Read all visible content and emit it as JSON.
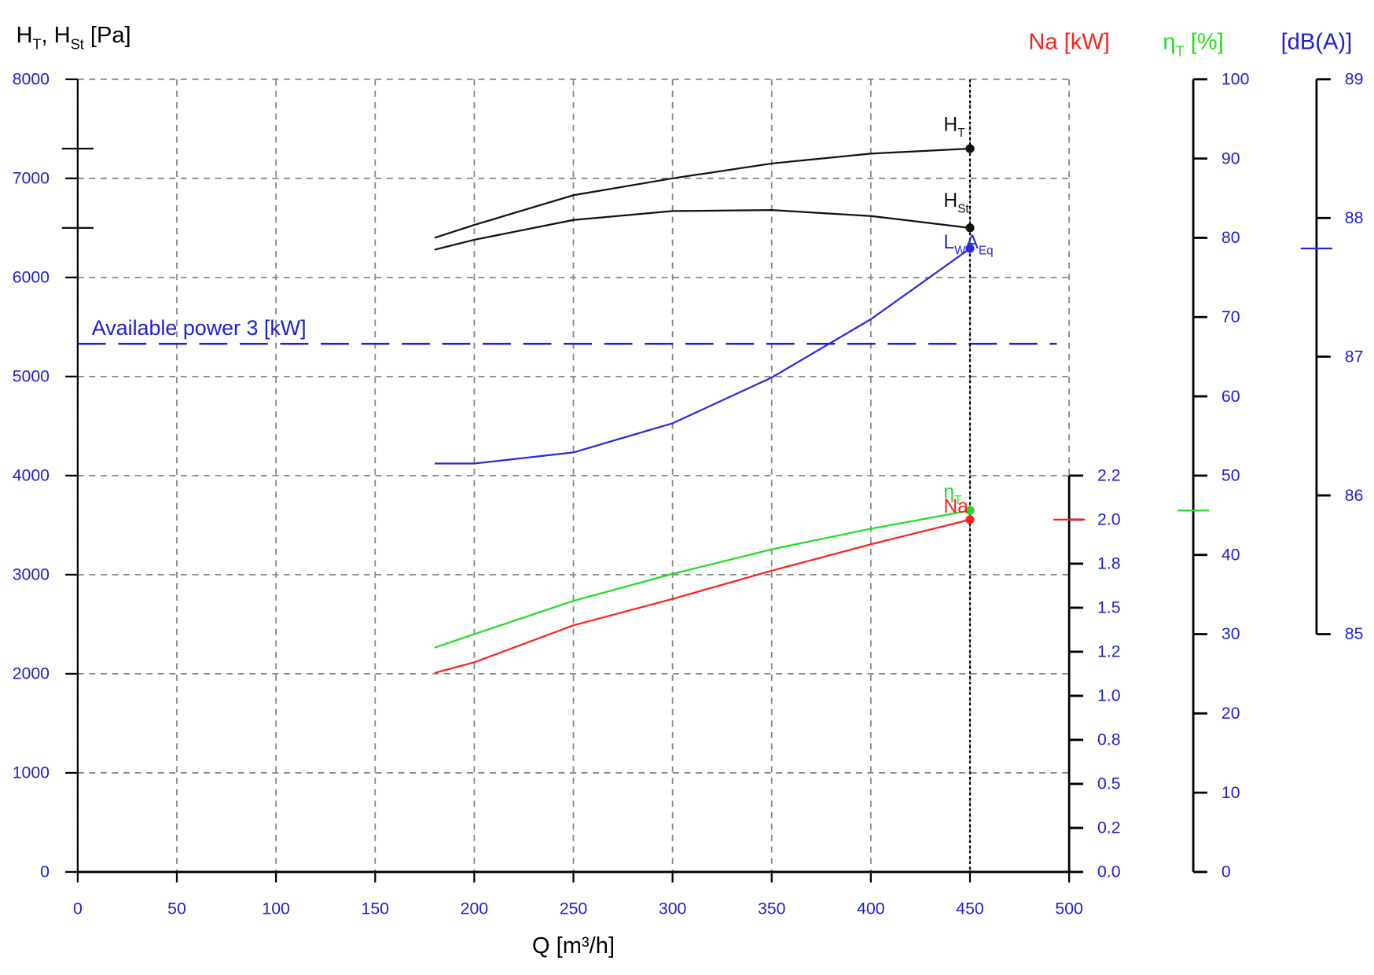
{
  "chart_data": {
    "type": "line",
    "x_label": "Q [m³/h]",
    "y_label": [
      "H",
      "T",
      ", H",
      "St",
      " [Pa]"
    ],
    "xlim": [
      0,
      500
    ],
    "xticks": [
      0,
      50,
      100,
      150,
      200,
      250,
      300,
      350,
      400,
      450,
      500
    ],
    "ylim": [
      0,
      8000
    ],
    "yticks": [
      0,
      1000,
      2000,
      3000,
      4000,
      5000,
      6000,
      7000,
      8000
    ],
    "grid": true,
    "operating_q": 450,
    "annotation": {
      "text": "Available power 3 [kW]",
      "y": 5330,
      "color": "#1f1fd0"
    },
    "axes": {
      "na": {
        "label": [
          "Na [kW]"
        ],
        "color": "#ff2020",
        "lim": [
          0,
          2.25
        ],
        "ticks": [
          {
            "value": 0,
            "label": "0.0"
          },
          {
            "value": 0.25,
            "label": "0.2"
          },
          {
            "value": 0.5,
            "label": "0.5"
          },
          {
            "value": 0.75,
            "label": "0.8"
          },
          {
            "value": 1,
            "label": "1.0"
          },
          {
            "value": 1.25,
            "label": "1.2"
          },
          {
            "value": 1.5,
            "label": "1.5"
          },
          {
            "value": 1.75,
            "label": "1.8"
          },
          {
            "value": 2,
            "label": "2.0"
          },
          {
            "value": 2.25,
            "label": "2.2"
          }
        ]
      },
      "eta": {
        "label": [
          "η",
          "T",
          " [%]"
        ],
        "color": "#22dd22",
        "lim": [
          0,
          100
        ],
        "ticks": [
          0,
          10,
          20,
          30,
          40,
          50,
          60,
          70,
          80,
          90,
          100
        ]
      },
      "db": {
        "label": [
          "[dB(A)]"
        ],
        "color": "#1f1fd0",
        "lim": [
          85,
          89
        ],
        "ticks": [
          85,
          86,
          87,
          88,
          89
        ]
      }
    },
    "x": [
      180,
      200,
      250,
      300,
      350,
      400,
      450
    ],
    "series": [
      {
        "label": [
          "H",
          "T"
        ],
        "color": "#111111",
        "axis": "y",
        "values": [
          6400,
          6530,
          6830,
          7000,
          7150,
          7250,
          7300
        ]
      },
      {
        "label": [
          "H",
          "St"
        ],
        "color": "#111111",
        "axis": "y",
        "values": [
          6280,
          6380,
          6580,
          6670,
          6680,
          6620,
          6500
        ]
      },
      {
        "label": [
          "L",
          "W",
          "A",
          "Eq"
        ],
        "color": "#2a2ae0",
        "axis": "db",
        "values": [
          86.23,
          86.23,
          86.31,
          86.52,
          86.85,
          87.27,
          87.78
        ]
      },
      {
        "label": [
          "η",
          "T"
        ],
        "color": "#22dd22",
        "axis": "eta",
        "values": [
          28.3,
          30.0,
          34.2,
          37.6,
          40.7,
          43.3,
          45.6
        ]
      },
      {
        "label": [
          "Na"
        ],
        "color": "#ff2020",
        "axis": "na",
        "values": [
          1.13,
          1.19,
          1.4,
          1.55,
          1.71,
          1.86,
          2.0
        ]
      }
    ]
  }
}
